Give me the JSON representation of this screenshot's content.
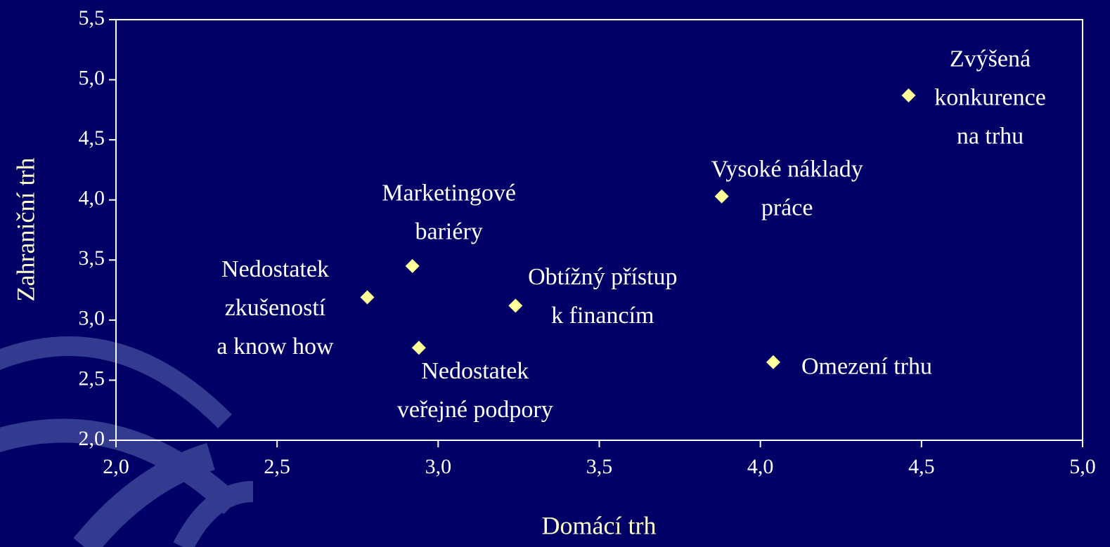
{
  "chart_data": {
    "type": "scatter",
    "x_label": "Domácí trh",
    "y_label": "Zahraniční trh",
    "x": [
      2.78,
      2.92,
      2.94,
      3.24,
      3.88,
      4.04,
      4.46
    ],
    "values": [
      3.19,
      3.45,
      2.77,
      3.12,
      4.03,
      2.65,
      4.87
    ],
    "labels": [
      [
        "Nedostatek",
        "zkušeností",
        "a know how"
      ],
      [
        "Marketingové",
        "bariéry"
      ],
      [
        "Nedostatek",
        "veřejné podpory"
      ],
      [
        "Obtížný přístup",
        "k financím"
      ],
      [
        "Vysoké náklady",
        "práce"
      ],
      [
        "Omezení trhu"
      ],
      [
        "Zvýšená",
        "konkurence",
        "na trhu"
      ]
    ],
    "color": "#ffff99",
    "xlim": [
      2.0,
      5.0
    ],
    "ylim": [
      2.0,
      5.5
    ],
    "xticks": [
      {
        "value": 2.0,
        "label": "2,0"
      },
      {
        "value": 2.5,
        "label": "2,5"
      },
      {
        "value": 3.0,
        "label": "3,0"
      },
      {
        "value": 3.5,
        "label": "3,5"
      },
      {
        "value": 4.0,
        "label": "4,0"
      },
      {
        "value": 4.5,
        "label": "4,5"
      },
      {
        "value": 5.0,
        "label": "5,0"
      }
    ],
    "yticks": [
      {
        "value": 2.0,
        "label": "2,0"
      },
      {
        "value": 2.5,
        "label": "2,5"
      },
      {
        "value": 3.0,
        "label": "3,0"
      },
      {
        "value": 3.5,
        "label": "3,5"
      },
      {
        "value": 4.0,
        "label": "4,0"
      },
      {
        "value": 4.5,
        "label": "4,5"
      },
      {
        "value": 5.0,
        "label": "5,0"
      },
      {
        "value": 5.5,
        "label": "5,5"
      }
    ]
  }
}
